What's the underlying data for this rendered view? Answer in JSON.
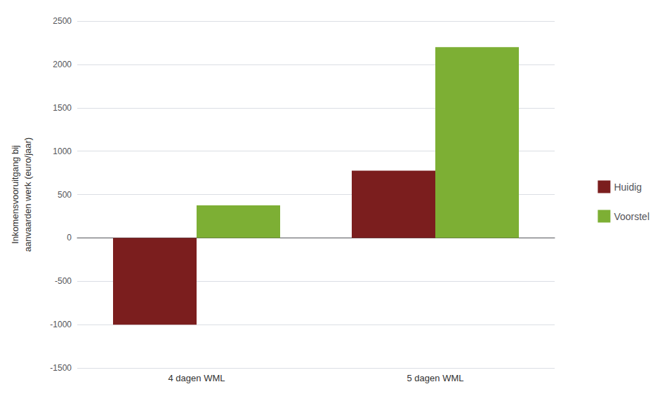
{
  "chart_data": {
    "type": "bar",
    "categories": [
      "4 dagen WML",
      "5 dagen WML"
    ],
    "series": [
      {
        "name": "Huidig",
        "color": "#7B1E1E",
        "values": [
          -1000,
          775
        ]
      },
      {
        "name": "Voorstel",
        "color": "#7DAF34",
        "values": [
          375,
          2200
        ]
      }
    ],
    "ylabel": "Inkomensvooruitgang bij\naanvaarden werk (euro/jaar)",
    "ylim": [
      -1500,
      2500
    ],
    "yticks": [
      -1500,
      -1000,
      -500,
      0,
      500,
      1000,
      1500,
      2000,
      2500
    ],
    "grid": true,
    "legend": "right"
  }
}
